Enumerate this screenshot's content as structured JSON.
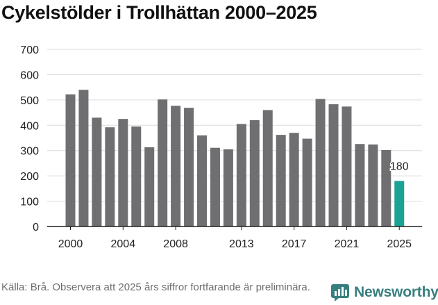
{
  "chart_data": {
    "type": "bar",
    "title": "Cykelstölder i Trollhättan 2000–2025",
    "xlabel": "",
    "ylabel": "",
    "ylim": [
      0,
      700
    ],
    "yticks": [
      0,
      100,
      200,
      300,
      400,
      500,
      600,
      700
    ],
    "xticks": [
      2000,
      2004,
      2008,
      2013,
      2017,
      2021,
      2025
    ],
    "grid": "horizontal",
    "categories": [
      2000,
      2001,
      2002,
      2003,
      2004,
      2005,
      2006,
      2007,
      2008,
      2009,
      2010,
      2011,
      2012,
      2013,
      2014,
      2015,
      2016,
      2017,
      2018,
      2019,
      2020,
      2021,
      2022,
      2023,
      2024,
      2025
    ],
    "values": [
      522,
      540,
      430,
      392,
      425,
      395,
      313,
      502,
      477,
      469,
      360,
      311,
      305,
      405,
      420,
      460,
      362,
      370,
      347,
      504,
      483,
      474,
      326,
      324,
      302,
      180
    ],
    "colors": {
      "default": "#6f6f72",
      "highlight": "#1aa394"
    },
    "highlight_index": 25,
    "annotation": {
      "label": "180",
      "category": 2025
    }
  },
  "source": "Källa: Brå. Observera att 2025 års siffror fortfarande är preliminära.",
  "brand": {
    "name": "Newsworthy",
    "icon": "newsworthy-logo-icon",
    "color": "#38807f"
  }
}
